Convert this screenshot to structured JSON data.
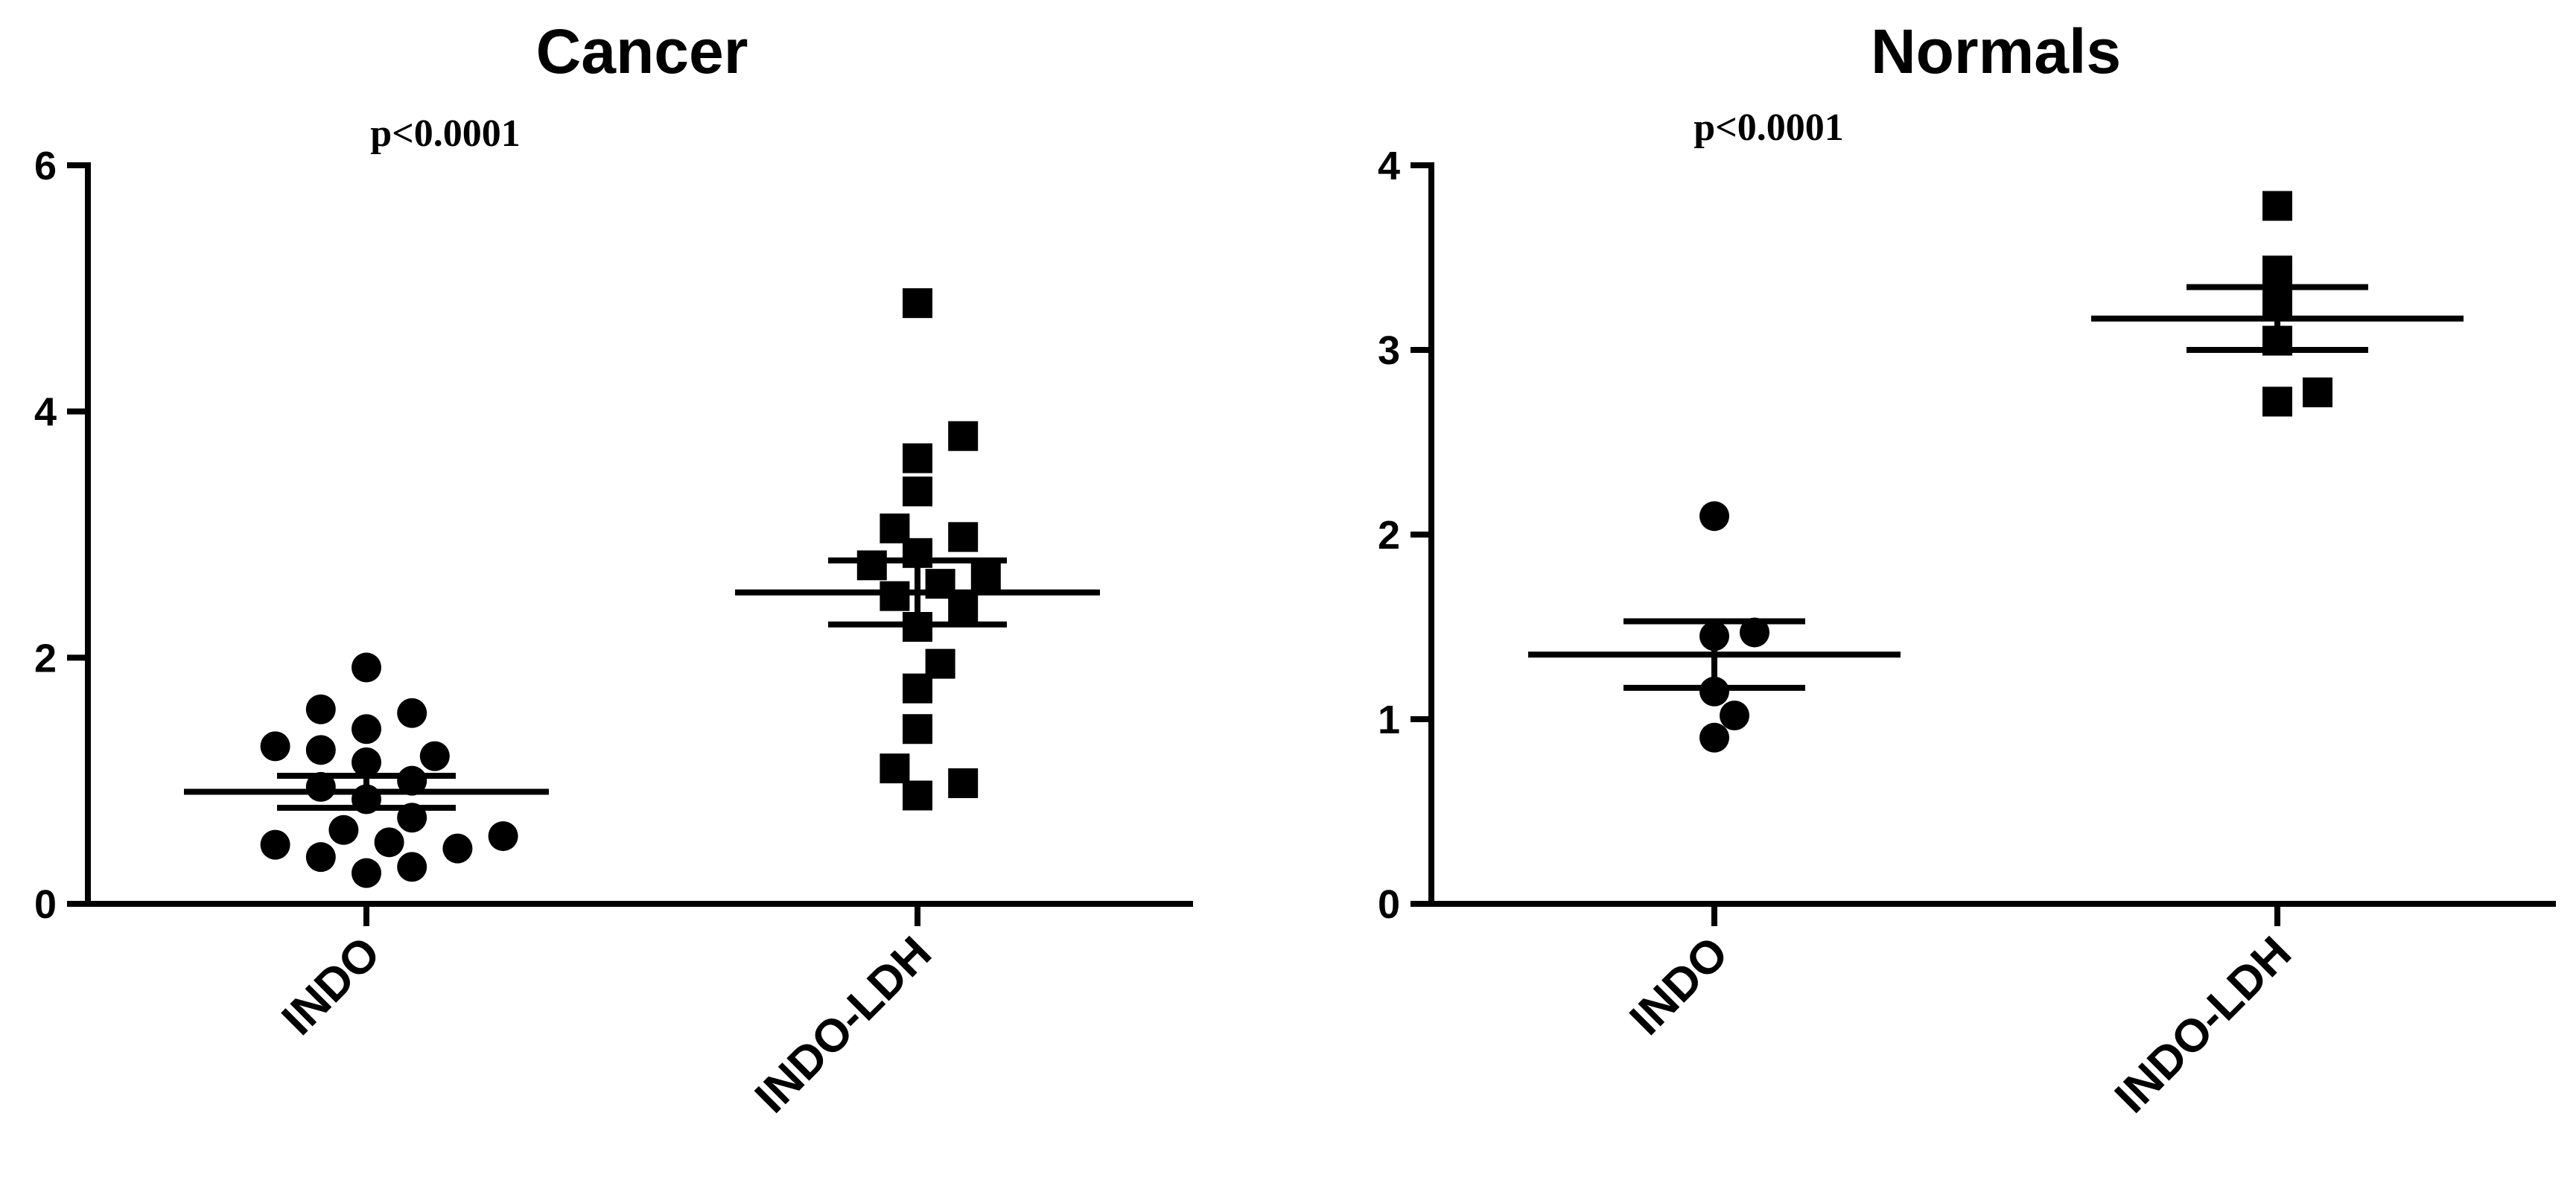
{
  "chart_data": [
    {
      "type": "scatter",
      "title": "Cancer",
      "annotation": "p<0.0001",
      "categories": [
        "INDO",
        "INDO-LDH"
      ],
      "ylim": [
        0,
        6
      ],
      "yticks": [
        "0",
        "2",
        "4",
        "6"
      ],
      "series": [
        {
          "marker": "circle",
          "values": [
            0.25,
            0.3,
            0.38,
            0.45,
            0.48,
            0.5,
            0.55,
            0.6,
            0.7,
            0.85,
            0.95,
            1.0,
            1.15,
            1.2,
            1.25,
            1.28,
            1.42,
            1.55,
            1.58,
            1.92
          ],
          "mean": 0.91,
          "sem_low": 0.78,
          "sem_high": 1.04
        },
        {
          "marker": "square",
          "values": [
            0.88,
            0.98,
            1.1,
            1.42,
            1.75,
            1.95,
            2.25,
            2.4,
            2.5,
            2.6,
            2.65,
            2.75,
            2.85,
            2.98,
            3.05,
            3.35,
            3.62,
            3.8,
            4.88
          ],
          "mean": 2.53,
          "sem_low": 2.27,
          "sem_high": 2.79
        }
      ]
    },
    {
      "type": "scatter",
      "title": "Normals",
      "annotation": "p<0.0001",
      "categories": [
        "INDO",
        "INDO-LDH"
      ],
      "ylim": [
        0,
        4
      ],
      "yticks": [
        "0",
        "1",
        "2",
        "3",
        "4"
      ],
      "series": [
        {
          "marker": "circle",
          "values": [
            0.9,
            1.02,
            1.15,
            1.45,
            1.47,
            2.1
          ],
          "mean": 1.35,
          "sem_low": 1.17,
          "sem_high": 1.53
        },
        {
          "marker": "square",
          "values": [
            2.72,
            2.77,
            3.05,
            3.25,
            3.43,
            3.78
          ],
          "mean": 3.17,
          "sem_low": 3.0,
          "sem_high": 3.34
        }
      ]
    }
  ]
}
